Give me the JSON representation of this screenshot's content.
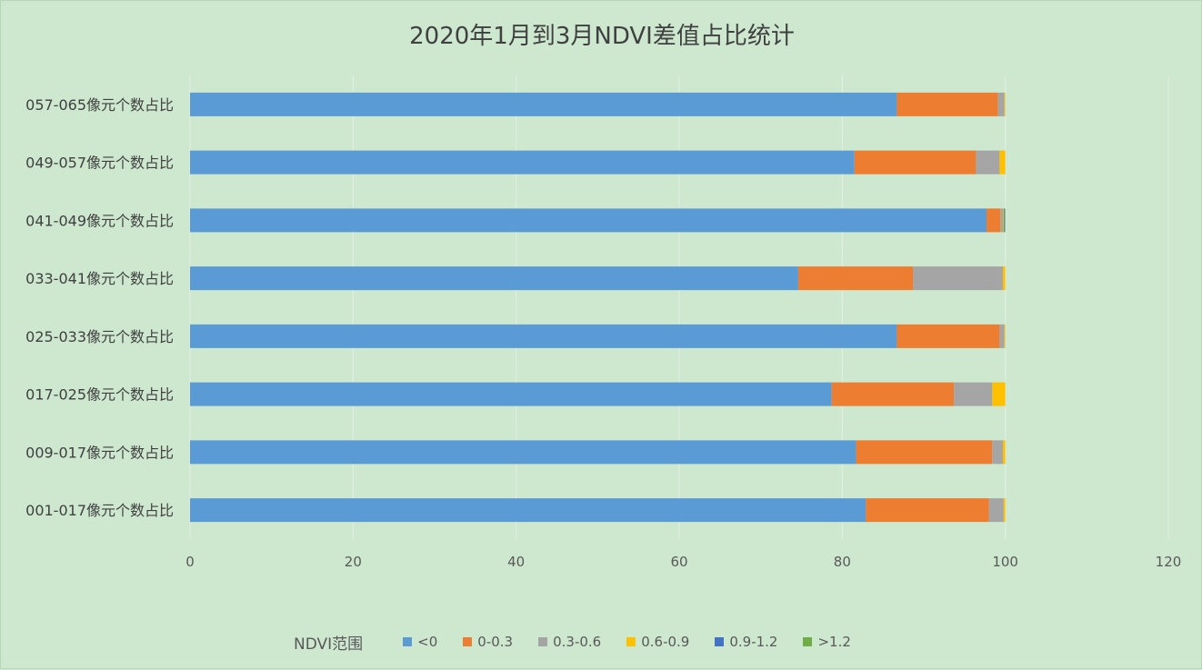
{
  "chart_data": {
    "type": "bar",
    "orientation": "horizontal",
    "stacked": true,
    "title": "2020年1月到3月NDVI差值占比统计",
    "categories": [
      "001-017像元个数占比",
      "009-017像元个数占比",
      "017-025像元个数占比",
      "025-033像元个数占比",
      "033-041像元个数占比",
      "041-049像元个数占比",
      "049-057像元个数占比",
      "057-065像元个数占比"
    ],
    "series": [
      {
        "name": "<0",
        "color": "#5b9bd5",
        "values": [
          82.9,
          81.7,
          78.7,
          86.7,
          74.6,
          97.7,
          81.5,
          86.7
        ]
      },
      {
        "name": "0-0.3",
        "color": "#ed7d31",
        "values": [
          15.1,
          16.7,
          15.0,
          12.6,
          14.1,
          1.7,
          14.9,
          12.4
        ]
      },
      {
        "name": "0.3-0.6",
        "color": "#a5a5a5",
        "values": [
          1.8,
          1.3,
          4.7,
          0.6,
          11.0,
          0.3,
          2.9,
          0.8
        ]
      },
      {
        "name": "0.6-0.9",
        "color": "#ffc000",
        "values": [
          0.2,
          0.3,
          1.6,
          0.1,
          0.3,
          0.1,
          0.7,
          0.1
        ]
      },
      {
        "name": "0.9-1.2",
        "color": "#4472c4",
        "values": [
          0.0,
          0.0,
          0.0,
          0.0,
          0.0,
          0.1,
          0.0,
          0.0
        ]
      },
      {
        "name": ">1.2",
        "color": "#70ad47",
        "values": [
          0.0,
          0.0,
          0.0,
          0.0,
          0.0,
          0.1,
          0.0,
          0.0
        ]
      }
    ],
    "xlim": [
      0,
      120
    ],
    "xticks": [
      "0",
      "20",
      "40",
      "60",
      "80",
      "100",
      "120"
    ],
    "grid": true,
    "legend_title": "NDVI范围",
    "legend_position": "bottom"
  }
}
